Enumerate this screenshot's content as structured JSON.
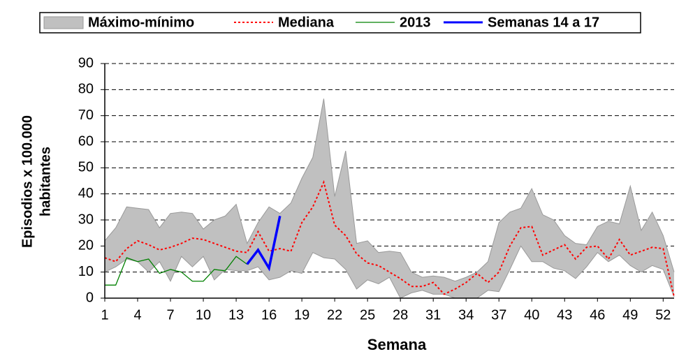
{
  "chart_data": {
    "type": "line",
    "legend": [
      "Máximo-mínimo",
      "Mediana",
      "2013",
      "Semanas 14 a 17"
    ],
    "xlabel": "Semana",
    "ylabel": [
      "Episodios x 100.000",
      "habitantes"
    ],
    "x": [
      1,
      2,
      3,
      4,
      5,
      6,
      7,
      8,
      9,
      10,
      11,
      12,
      13,
      14,
      15,
      16,
      17,
      18,
      19,
      20,
      21,
      22,
      23,
      24,
      25,
      26,
      27,
      28,
      29,
      30,
      31,
      32,
      33,
      34,
      35,
      36,
      37,
      38,
      39,
      40,
      41,
      42,
      43,
      44,
      45,
      46,
      47,
      48,
      49,
      50,
      51,
      52,
      53
    ],
    "xlim": [
      1,
      53
    ],
    "xticks": [
      1,
      4,
      7,
      10,
      13,
      16,
      19,
      22,
      25,
      28,
      31,
      34,
      37,
      40,
      43,
      46,
      49,
      52
    ],
    "ylim": [
      0,
      90
    ],
    "yticks": [
      0,
      10,
      20,
      30,
      40,
      50,
      60,
      70,
      80,
      90
    ],
    "grid": true,
    "band": {
      "name": "Máximo-mínimo",
      "color": "#c0c0c0",
      "edge_color": "#999999",
      "max": [
        22,
        27,
        35,
        34.5,
        34,
        27,
        32.5,
        33,
        32.5,
        26.5,
        30,
        31.5,
        36,
        21,
        29,
        35,
        32.5,
        36.5,
        46,
        54,
        76.5,
        39,
        56.5,
        21,
        22,
        17.5,
        18,
        17.5,
        10,
        8,
        8.5,
        8,
        6.5,
        8,
        10,
        14,
        29,
        33,
        34.5,
        42,
        32,
        30,
        24,
        21,
        20.5,
        27.5,
        29.5,
        28.5,
        43,
        26,
        33,
        24,
        10
      ],
      "min": [
        10,
        12,
        15,
        14,
        10,
        14,
        6.5,
        16,
        12,
        16,
        7,
        11,
        10.5,
        10.5,
        12,
        7,
        8,
        10.5,
        9.5,
        17.5,
        15.5,
        15,
        11,
        3.5,
        7,
        5.5,
        8,
        0,
        2,
        3,
        1.5,
        1.5,
        0,
        0,
        0,
        3,
        2.5,
        11,
        20,
        14,
        14,
        11.5,
        10.5,
        7.5,
        12,
        17.5,
        14,
        16.5,
        12.5,
        10,
        12.5,
        11,
        0.5
      ]
    },
    "series": [
      {
        "name": "Mediana",
        "color": "#ff0000",
        "dash": "3 3",
        "width": 2,
        "values": [
          15.5,
          14,
          19,
          22,
          20.5,
          18.5,
          19.5,
          21,
          23,
          22.5,
          21,
          19.5,
          18,
          17.5,
          25.5,
          18,
          19,
          18,
          29,
          35,
          44.5,
          28,
          24,
          17,
          13.5,
          12.5,
          10,
          7.5,
          4.5,
          4.5,
          6,
          1.5,
          3.5,
          6,
          9.5,
          6,
          10,
          20,
          27,
          27.5,
          16.5,
          18.5,
          20.5,
          15,
          19.5,
          20,
          15,
          22.5,
          16.5,
          18,
          19.5,
          19,
          0.5
        ]
      },
      {
        "name": "2013",
        "color": "#008000",
        "dash": "none",
        "width": 1.3,
        "values": [
          5,
          5,
          15.5,
          14,
          15,
          9.5,
          11,
          10,
          6.5,
          6.5,
          11,
          10.5,
          16,
          13,
          null,
          null,
          null,
          null,
          null,
          null,
          null,
          null,
          null,
          null,
          null,
          null,
          null,
          null,
          null,
          null,
          null,
          null,
          null,
          null,
          null,
          null,
          null,
          null,
          null,
          null,
          null,
          null,
          null,
          null,
          null,
          null,
          null,
          null,
          null,
          null,
          null,
          null,
          null
        ]
      },
      {
        "name": "Semanas 14 a 17",
        "color": "#0000ff",
        "dash": "none",
        "width": 3.5,
        "values": [
          null,
          null,
          null,
          null,
          null,
          null,
          null,
          null,
          null,
          null,
          null,
          null,
          null,
          13,
          18.5,
          11.5,
          31.5,
          null,
          null,
          null,
          null,
          null,
          null,
          null,
          null,
          null,
          null,
          null,
          null,
          null,
          null,
          null,
          null,
          null,
          null,
          null,
          null,
          null,
          null,
          null,
          null,
          null,
          null,
          null,
          null,
          null,
          null,
          null,
          null,
          null,
          null,
          null,
          null
        ]
      }
    ]
  }
}
